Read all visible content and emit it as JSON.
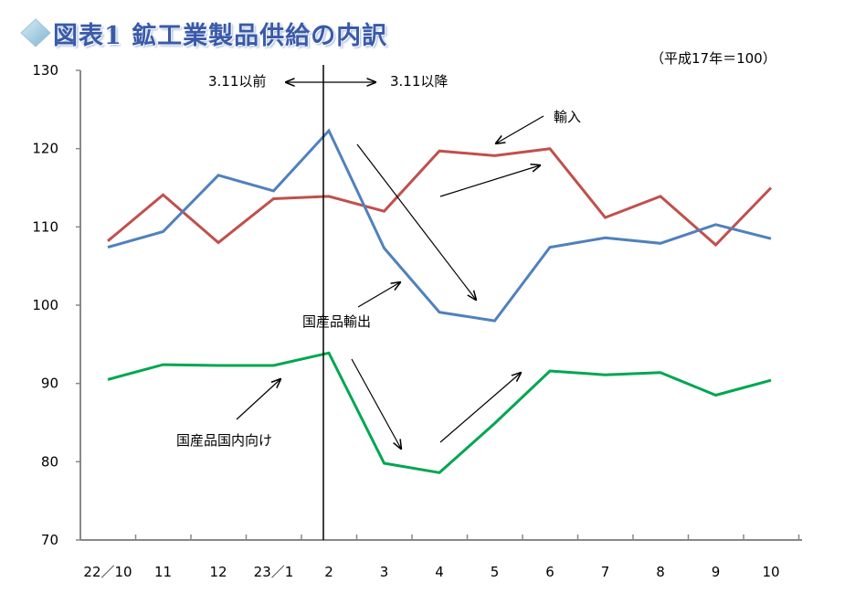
{
  "chart_data": {
    "type": "line",
    "title": "図表1 鉱工業製品供給の内訳",
    "unit_note": "（平成17年＝100）",
    "categories": [
      "22／10",
      "11",
      "12",
      "23／1",
      "2",
      "3",
      "4",
      "5",
      "6",
      "7",
      "8",
      "9",
      "10"
    ],
    "ylim": [
      70,
      130
    ],
    "yticks": [
      70,
      80,
      90,
      100,
      110,
      120,
      130
    ],
    "grid": false,
    "series": [
      {
        "name": "輸入",
        "color": "#c0504d",
        "values": [
          108.2,
          114.1,
          108.0,
          113.6,
          113.9,
          112.0,
          119.7,
          119.1,
          120.0,
          111.2,
          113.9,
          107.7,
          115.0
        ]
      },
      {
        "name": "国産品輸出",
        "color": "#4f81bd",
        "values": [
          107.4,
          109.4,
          116.6,
          114.6,
          122.3,
          107.3,
          99.1,
          98.0,
          107.4,
          108.6,
          107.9,
          110.3,
          108.5
        ]
      },
      {
        "name": "国産品国内向け",
        "color": "#00a651",
        "values": [
          90.5,
          92.4,
          92.3,
          92.3,
          93.9,
          79.8,
          78.6,
          84.9,
          91.6,
          91.1,
          91.4,
          88.5,
          90.4
        ]
      }
    ],
    "divider": {
      "at_category": "2",
      "before_label": "3.11以前",
      "after_label": "3.11以降"
    },
    "annotations": {
      "import_label": "輸入",
      "export_label": "国産品輸出",
      "domestic_label": "国産品国内向け"
    }
  }
}
